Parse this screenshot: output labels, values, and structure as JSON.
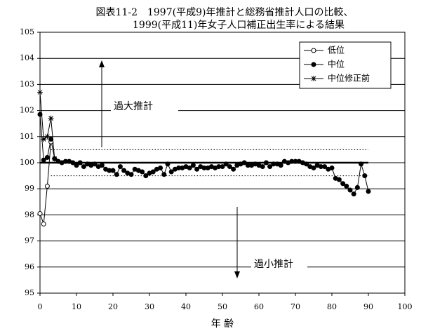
{
  "chart_data": {
    "type": "line",
    "title": [
      "図表11-2　1997(平成9)年推計と総務省推計人口の比較、",
      "1999(平成11)年女子人口補正出生率による結果"
    ],
    "xlabel": "年 齢",
    "annotations": [
      "過大推計",
      "過小推計"
    ],
    "xlim": [
      0,
      100
    ],
    "xticks": [
      0,
      10,
      20,
      30,
      40,
      50,
      60,
      70,
      80,
      90,
      100
    ],
    "ylim": [
      95,
      105
    ],
    "yticks": [
      95,
      96,
      97,
      98,
      99,
      100,
      101,
      102,
      103,
      104,
      105
    ],
    "grid": true,
    "legend": "upper right",
    "hlines": [
      {
        "value": 100,
        "style": "solid"
      },
      {
        "value": 100.5,
        "style": "dotted"
      },
      {
        "value": 99.5,
        "style": "dotted"
      }
    ],
    "series": [
      {
        "name": "低位",
        "marker": "open-circle",
        "color": "#000000",
        "x": [
          0,
          1,
          2,
          3
        ],
        "values": [
          98.05,
          97.65,
          99.1,
          100.8
        ]
      },
      {
        "name": "中位",
        "marker": "filled-circle",
        "color": "#000000",
        "x": [
          0,
          1,
          2,
          3,
          4,
          5,
          6,
          7,
          8,
          9,
          10,
          11,
          12,
          13,
          14,
          15,
          16,
          17,
          18,
          19,
          20,
          21,
          22,
          23,
          24,
          25,
          26,
          27,
          28,
          29,
          30,
          31,
          32,
          33,
          34,
          35,
          36,
          37,
          38,
          39,
          40,
          41,
          42,
          43,
          44,
          45,
          46,
          47,
          48,
          49,
          50,
          51,
          52,
          53,
          54,
          55,
          56,
          57,
          58,
          59,
          60,
          61,
          62,
          63,
          64,
          65,
          66,
          67,
          68,
          69,
          70,
          71,
          72,
          73,
          74,
          75,
          76,
          77,
          78,
          79,
          80,
          81,
          82,
          83,
          84,
          85,
          86,
          87,
          88,
          89,
          90
        ],
        "values": [
          101.85,
          100.1,
          100.2,
          100.9,
          100.15,
          100.05,
          100.0,
          100.05,
          100.05,
          100.0,
          99.9,
          100.0,
          99.85,
          99.95,
          99.9,
          99.95,
          99.85,
          99.9,
          99.75,
          99.7,
          99.7,
          99.55,
          99.85,
          99.7,
          99.6,
          99.55,
          99.75,
          99.7,
          99.65,
          99.5,
          99.6,
          99.65,
          99.75,
          99.8,
          99.55,
          99.95,
          99.65,
          99.75,
          99.8,
          99.8,
          99.85,
          99.8,
          99.9,
          99.75,
          99.85,
          99.8,
          99.8,
          99.85,
          99.8,
          99.85,
          99.85,
          99.95,
          99.85,
          99.75,
          99.9,
          99.95,
          100.0,
          99.9,
          99.9,
          99.95,
          99.9,
          99.85,
          100.0,
          99.85,
          99.95,
          99.95,
          99.9,
          100.05,
          100.0,
          100.05,
          100.05,
          100.05,
          100.0,
          99.95,
          99.85,
          99.8,
          99.9,
          99.85,
          99.85,
          99.75,
          99.8,
          99.4,
          99.35,
          99.2,
          99.1,
          98.95,
          98.8,
          99.05,
          99.95,
          99.5,
          98.9
        ]
      },
      {
        "name": "中位修正前",
        "marker": "star",
        "color": "#000000",
        "x": [
          0,
          1,
          2,
          3,
          4
        ],
        "values": [
          102.7,
          100.9,
          101.0,
          101.7,
          100.15
        ]
      }
    ]
  }
}
